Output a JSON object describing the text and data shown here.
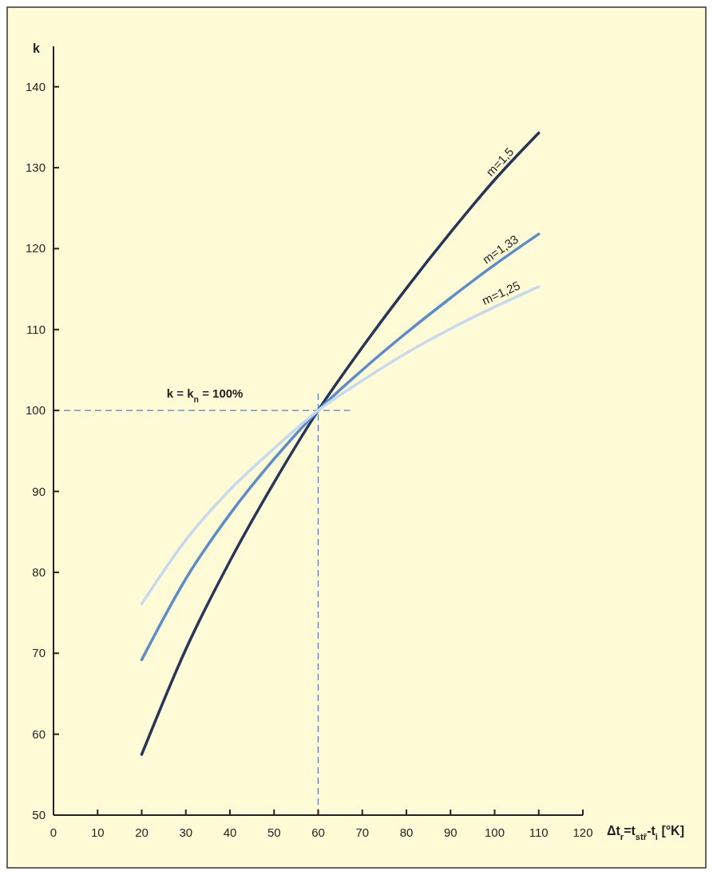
{
  "chart_data": {
    "type": "line",
    "xlabel": "Δt$_{r}$=t$_{stř}$-t$_{i}$ [°K]",
    "ylabel": "k",
    "x": [
      20,
      30,
      40,
      50,
      60,
      70,
      80,
      90,
      100,
      110
    ],
    "xlim": [
      0,
      120
    ],
    "xticks": [
      0,
      10,
      20,
      30,
      40,
      50,
      60,
      70,
      80,
      90,
      100,
      110,
      120
    ],
    "ylim": [
      50,
      145
    ],
    "yticks": [
      50,
      60,
      70,
      80,
      90,
      100,
      110,
      120,
      130,
      140
    ],
    "series": [
      {
        "name": "m=1,5",
        "color": "#253759",
        "values": [
          57.5,
          70.5,
          81.4,
          91.1,
          100,
          107.8,
          115.1,
          122,
          128.5,
          134.3
        ]
      },
      {
        "name": "m=1,33",
        "color": "#5b8ccc",
        "values": [
          69.2,
          79.2,
          87.2,
          94,
          100,
          105,
          109.6,
          113.9,
          118,
          121.8
        ]
      },
      {
        "name": "m=1,25",
        "color": "#c5d9ef",
        "values": [
          76.1,
          84,
          90.2,
          95.3,
          100,
          103.7,
          107.1,
          110.1,
          112.8,
          115.3
        ]
      }
    ],
    "ref_lines": [
      {
        "axis": "y",
        "value": 100,
        "label": "k = k$_{n}$ = 100%",
        "color": "#5b7fb5",
        "line_style": "dashed"
      },
      {
        "axis": "x",
        "value": 60,
        "color": "#5b7fb5",
        "line_style": "dashed"
      }
    ],
    "grid": false,
    "marker": "none",
    "line_style": "solid"
  }
}
